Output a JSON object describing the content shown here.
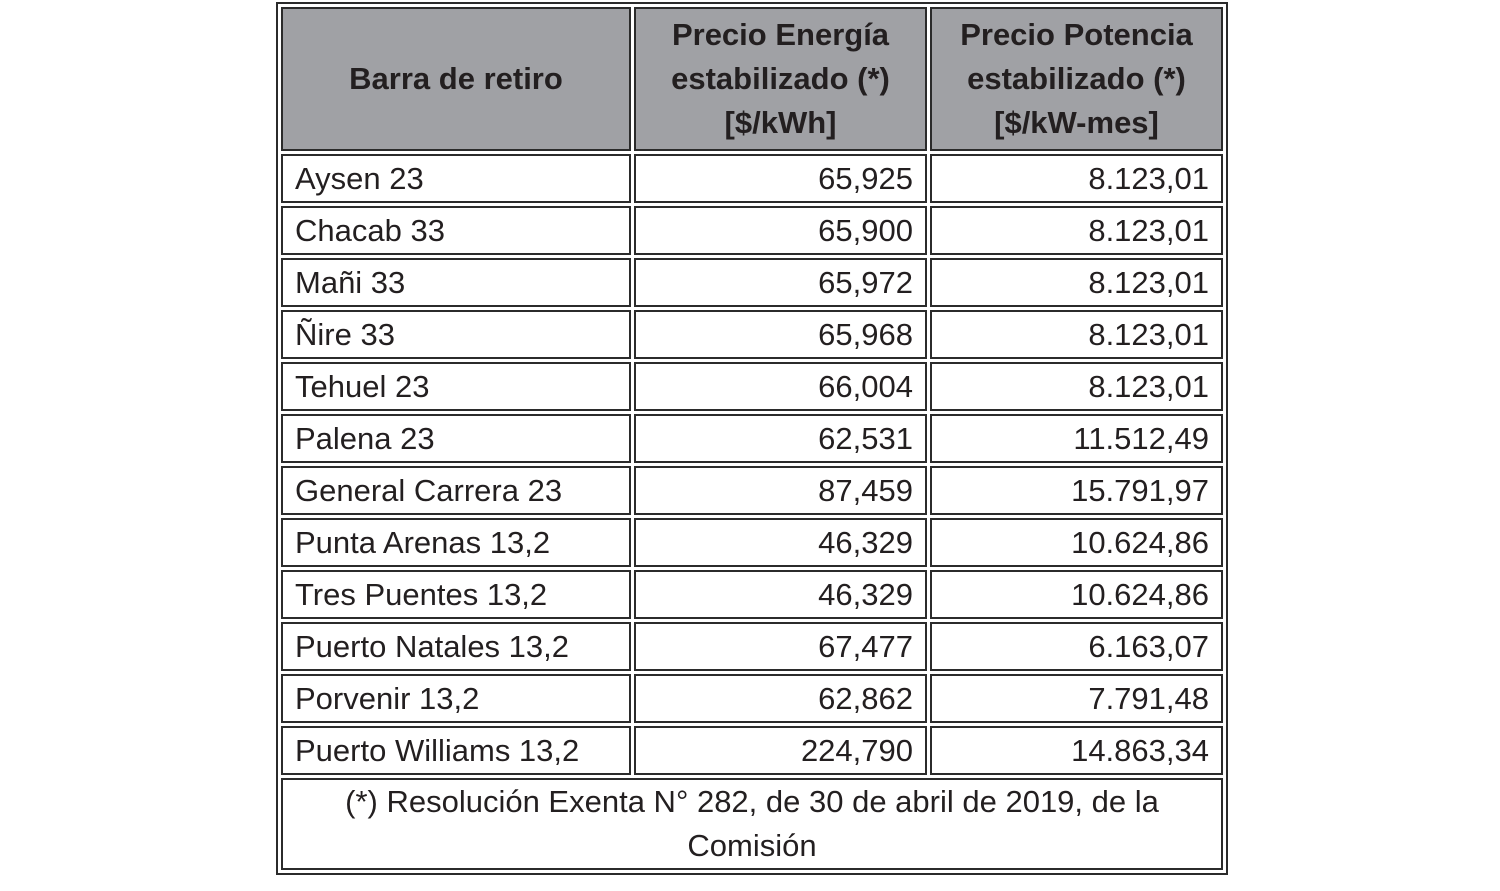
{
  "table": {
    "headers": [
      "Barra de retiro",
      "Precio Energía estabilizado (*) [$/kWh]",
      "Precio Potencia estabilizado (*) [$/kW-mes]"
    ],
    "rows": [
      [
        "Aysen 23",
        "65,925",
        "8.123,01"
      ],
      [
        "Chacab 33",
        "65,900",
        "8.123,01"
      ],
      [
        "Mañi 33",
        "65,972",
        "8.123,01"
      ],
      [
        "Ñire 33",
        "65,968",
        "8.123,01"
      ],
      [
        "Tehuel 23",
        "66,004",
        "8.123,01"
      ],
      [
        "Palena 23",
        "62,531",
        "11.512,49"
      ],
      [
        "General Carrera 23",
        "87,459",
        "15.791,97"
      ],
      [
        "Punta Arenas 13,2",
        "46,329",
        "10.624,86"
      ],
      [
        "Tres Puentes 13,2",
        "46,329",
        "10.624,86"
      ],
      [
        "Puerto Natales 13,2",
        "67,477",
        "6.163,07"
      ],
      [
        "Porvenir 13,2",
        "62,862",
        "7.791,48"
      ],
      [
        "Puerto Williams 13,2",
        "224,790",
        "14.863,34"
      ]
    ],
    "footnote": "(*) Resolución Exenta N° 282, de 30 de abril de 2019, de la Comisión"
  }
}
